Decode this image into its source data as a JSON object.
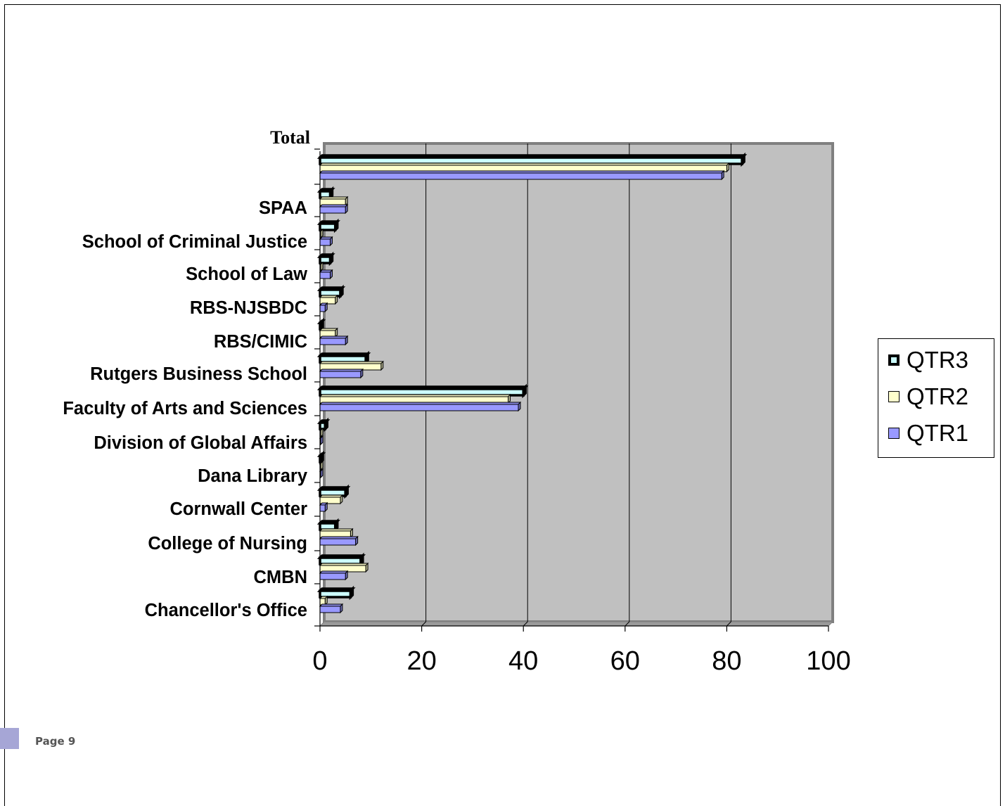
{
  "chart_data": {
    "type": "bar",
    "orientation": "horizontal",
    "categories": [
      "Total",
      "SPAA",
      "School of Criminal Justice",
      "School of Law",
      "RBS-NJSBDC",
      "RBS/CIMIC",
      "Rutgers Business School",
      "Faculty of Arts and Sciences",
      "Division of Global Affairs",
      "Dana Library",
      "Cornwall Center",
      "College of Nursing",
      "CMBN",
      "Chancellor's Office"
    ],
    "series": [
      {
        "name": "QTR3",
        "color": "#ccffff",
        "values": [
          83,
          2,
          3,
          2,
          4,
          0,
          9,
          40,
          1,
          0,
          5,
          3,
          8,
          6
        ]
      },
      {
        "name": "QTR2",
        "color": "#ffffcc",
        "values": [
          80,
          5,
          0,
          0,
          3,
          3,
          12,
          37,
          0,
          0,
          4,
          6,
          9,
          1
        ]
      },
      {
        "name": "QTR1",
        "color": "#9999ff",
        "values": [
          79,
          5,
          2,
          2,
          1,
          5,
          8,
          39,
          0,
          0,
          1,
          7,
          5,
          4
        ]
      }
    ],
    "xlim": [
      0,
      100
    ],
    "x_ticks": [
      "0",
      "20",
      "40",
      "60",
      "80",
      "100"
    ],
    "grid": true,
    "legend_position": "right",
    "plot_background": "#c0c0c0"
  },
  "footer": {
    "page_label": "Page 9"
  }
}
